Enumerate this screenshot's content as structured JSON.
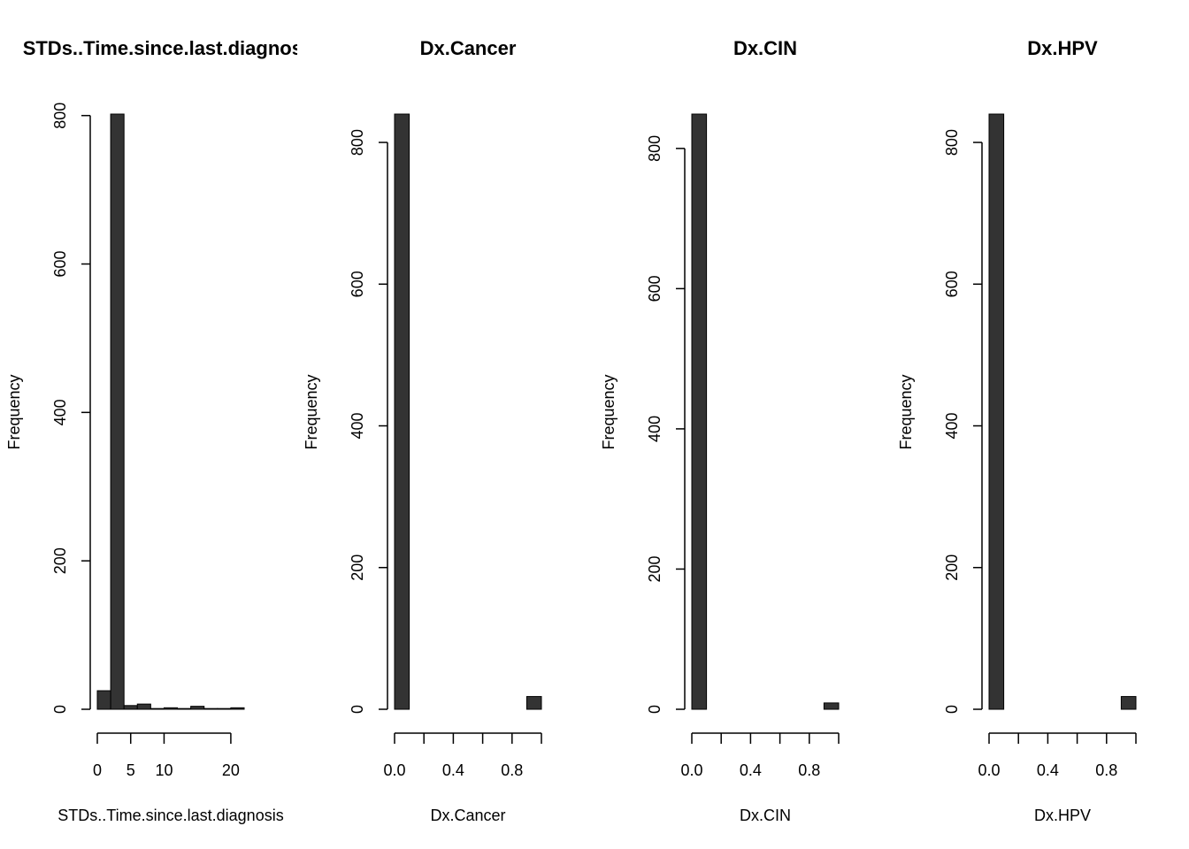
{
  "chart_data": [
    {
      "type": "bar",
      "title": "STDs..Time.since.last.diagnosis",
      "xlabel": "STDs..Time.since.last.diagnosis",
      "ylabel": "Frequency",
      "bin_edges": [
        0,
        2,
        4,
        6,
        8,
        10,
        12,
        14,
        16,
        18,
        20,
        22
      ],
      "values": [
        25,
        802,
        5,
        7,
        1,
        2,
        1,
        4,
        1,
        1,
        2
      ],
      "xlim": [
        0,
        22
      ],
      "ylim": [
        0,
        802
      ],
      "xticks": [
        0,
        5,
        10,
        20
      ],
      "xtick_labels": [
        "0",
        "5",
        "10",
        "20"
      ],
      "yticks": [
        0,
        200,
        400,
        600,
        800
      ],
      "ytick_labels": [
        "0",
        "200",
        "400",
        "600",
        "800"
      ],
      "bar_color": "#333333"
    },
    {
      "type": "bar",
      "title": "Dx.Cancer",
      "xlabel": "Dx.Cancer",
      "ylabel": "Frequency",
      "bin_edges": [
        0,
        0.1,
        0.2,
        0.3,
        0.4,
        0.5,
        0.6,
        0.7,
        0.8,
        0.9,
        1.0
      ],
      "values": [
        840,
        0,
        0,
        0,
        0,
        0,
        0,
        0,
        0,
        18
      ],
      "xlim": [
        0,
        1
      ],
      "ylim": [
        0,
        840
      ],
      "xticks": [
        0,
        0.2,
        0.4,
        0.6,
        0.8,
        1.0
      ],
      "xtick_labels": [
        "0.0",
        "",
        "0.4",
        "",
        "0.8",
        ""
      ],
      "yticks": [
        0,
        200,
        400,
        600,
        800
      ],
      "ytick_labels": [
        "0",
        "200",
        "400",
        "600",
        "800"
      ],
      "bar_color": "#333333"
    },
    {
      "type": "bar",
      "title": "Dx.CIN",
      "xlabel": "Dx.CIN",
      "ylabel": "Frequency",
      "bin_edges": [
        0,
        0.1,
        0.2,
        0.3,
        0.4,
        0.5,
        0.6,
        0.7,
        0.8,
        0.9,
        1.0
      ],
      "values": [
        849,
        0,
        0,
        0,
        0,
        0,
        0,
        0,
        0,
        9
      ],
      "xlim": [
        0,
        1
      ],
      "ylim": [
        0,
        849
      ],
      "xticks": [
        0,
        0.2,
        0.4,
        0.6,
        0.8,
        1.0
      ],
      "xtick_labels": [
        "0.0",
        "",
        "0.4",
        "",
        "0.8",
        ""
      ],
      "yticks": [
        0,
        200,
        400,
        600,
        800
      ],
      "ytick_labels": [
        "0",
        "200",
        "400",
        "600",
        "800"
      ],
      "bar_color": "#333333"
    },
    {
      "type": "bar",
      "title": "Dx.HPV",
      "xlabel": "Dx.HPV",
      "ylabel": "Frequency",
      "bin_edges": [
        0,
        0.1,
        0.2,
        0.3,
        0.4,
        0.5,
        0.6,
        0.7,
        0.8,
        0.9,
        1.0
      ],
      "values": [
        840,
        0,
        0,
        0,
        0,
        0,
        0,
        0,
        0,
        18
      ],
      "xlim": [
        0,
        1
      ],
      "ylim": [
        0,
        840
      ],
      "xticks": [
        0,
        0.2,
        0.4,
        0.6,
        0.8,
        1.0
      ],
      "xtick_labels": [
        "0.0",
        "",
        "0.4",
        "",
        "0.8",
        ""
      ],
      "yticks": [
        0,
        200,
        400,
        600,
        800
      ],
      "ytick_labels": [
        "0",
        "200",
        "400",
        "600",
        "800"
      ],
      "bar_color": "#333333"
    }
  ]
}
